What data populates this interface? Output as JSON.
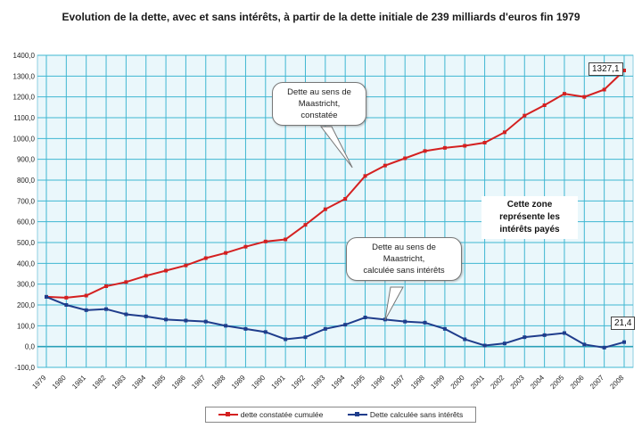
{
  "chart_data": {
    "type": "line",
    "title": "Evolution de la dette, avec et sans intérêts, à partir de la dette initiale de 239 milliards d'euros fin 1979",
    "xlabel": "",
    "ylabel": "",
    "ylim": [
      -100,
      1400
    ],
    "yticks": [
      "-100,0",
      "0,0",
      "100,0",
      "200,0",
      "300,0",
      "400,0",
      "500,0",
      "600,0",
      "700,0",
      "800,0",
      "900,0",
      "1000,0",
      "1100,0",
      "1200,0",
      "1300,0",
      "1400,0"
    ],
    "categories": [
      "1979",
      "1980",
      "1981",
      "1982",
      "1983",
      "1984",
      "1985",
      "1986",
      "1987",
      "1988",
      "1989",
      "1990",
      "1991",
      "1992",
      "1993",
      "1994",
      "1995",
      "1996",
      "1997",
      "1998",
      "1999",
      "2000",
      "2001",
      "2002",
      "2003",
      "2004",
      "2005",
      "2006",
      "2007",
      "2008"
    ],
    "series": [
      {
        "name": "dette constatée cumulée",
        "color": "#d42020",
        "values": [
          239,
          235,
          245,
          290,
          310,
          340,
          365,
          390,
          425,
          450,
          480,
          505,
          515,
          585,
          660,
          710,
          820,
          870,
          905,
          940,
          955,
          965,
          980,
          1030,
          1110,
          1160,
          1215,
          1200,
          1235,
          1327.1
        ]
      },
      {
        "name": "Dette calculée sans intérêts",
        "color": "#1f3d8c",
        "values": [
          239,
          200,
          175,
          180,
          155,
          145,
          130,
          125,
          120,
          100,
          85,
          70,
          35,
          45,
          85,
          105,
          140,
          130,
          120,
          115,
          85,
          35,
          5,
          15,
          45,
          55,
          65,
          10,
          -5,
          21.4
        ]
      }
    ],
    "grid": true,
    "legend_position": "bottom",
    "callouts": {
      "maastricht_constatee": [
        "Dette au sens de",
        "Maastricht,",
        "constatée"
      ],
      "maastricht_sans_interets": [
        "Dette au sens de",
        "Maastricht,",
        "calculée sans intérêts"
      ],
      "zone": [
        "Cette zone",
        "représente les",
        "intérêts payés"
      ]
    },
    "end_labels": {
      "red": "1327,1",
      "blue": "21,4"
    }
  },
  "colors": {
    "plot_bg": "#eaf7fb",
    "grid": "#3fb7d2",
    "baseline": "#2aa0b8",
    "red": "#d42020",
    "blue": "#1f3d8c"
  }
}
